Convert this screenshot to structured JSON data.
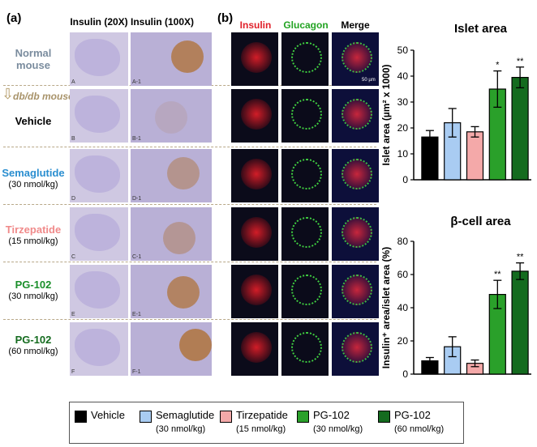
{
  "panel_a": {
    "label": "(a)",
    "col_headers": [
      "Insulin (20X)",
      "Insulin (100X)"
    ],
    "rows": [
      {
        "name": "Normal\nmouse",
        "dose": "",
        "color": "#7a8c9e"
      },
      {
        "name": "Vehicle",
        "dose": "",
        "color": "#000000"
      },
      {
        "name": "Semaglutide",
        "dose": "(30 nmol/kg)",
        "color": "#2a8ed0"
      },
      {
        "name": "Tirzepatide",
        "dose": "(15 nmol/kg)",
        "color": "#f08a8a"
      },
      {
        "name": "PG-102",
        "dose": "(30 nmol/kg)",
        "color": "#1a8f2a"
      },
      {
        "name": "PG-102",
        "dose": "(60 nmol/kg)",
        "color": "#146b1f"
      }
    ],
    "db_label": "db/db mouse",
    "image_codes_20x": [
      "A",
      "B",
      "D",
      "C",
      "E",
      "F"
    ],
    "image_codes_100x": [
      "A-1",
      "B-1",
      "D-1",
      "C-1",
      "E-1",
      "F-1"
    ]
  },
  "panel_b": {
    "label": "(b)",
    "col_headers": [
      {
        "text": "Insulin",
        "color": "#e0202a"
      },
      {
        "text": "Glucagon",
        "color": "#22a322"
      },
      {
        "text": "Merge",
        "color": "#000000"
      }
    ],
    "scale_label": "50 µm"
  },
  "chart_data": [
    {
      "type": "bar",
      "title": "Islet area",
      "ylabel": "Islet area (µm² x 1000)",
      "ylim": [
        0,
        50
      ],
      "yticks": [
        0,
        10,
        20,
        30,
        40,
        50
      ],
      "categories": [
        "Vehicle",
        "Semaglutide",
        "Tirzepatide",
        "PG-102 (30 nmol/kg)",
        "PG-102 (60 nmol/kg)"
      ],
      "values": [
        16.5,
        22,
        18.5,
        35,
        39.5
      ],
      "errors": [
        2.5,
        5.5,
        2,
        7,
        4
      ],
      "significance": [
        "",
        "",
        "",
        "*",
        "**"
      ],
      "colors": [
        "#000000",
        "#a9ccf2",
        "#f4a9a9",
        "#2aa02a",
        "#146b1f"
      ]
    },
    {
      "type": "bar",
      "title": "β-cell area",
      "ylabel": "Insulin⁺ area/islet area (%)",
      "ylim": [
        0,
        80
      ],
      "yticks": [
        0,
        20,
        40,
        60,
        80
      ],
      "categories": [
        "Vehicle",
        "Semaglutide",
        "Tirzepatide",
        "PG-102 (30 nmol/kg)",
        "PG-102 (60 nmol/kg)"
      ],
      "values": [
        8,
        16.5,
        6.5,
        48,
        62
      ],
      "errors": [
        2,
        6,
        2,
        8.5,
        5
      ],
      "significance": [
        "",
        "",
        "",
        "**",
        "**"
      ],
      "colors": [
        "#000000",
        "#a9ccf2",
        "#f4a9a9",
        "#2aa02a",
        "#146b1f"
      ]
    }
  ],
  "legend": [
    {
      "name": "Vehicle",
      "dose": "",
      "color": "#000000"
    },
    {
      "name": "Semaglutide",
      "dose": "(30 nmol/kg)",
      "color": "#a9ccf2"
    },
    {
      "name": "Tirzepatide",
      "dose": "(15 nmol/kg)",
      "color": "#f4a9a9"
    },
    {
      "name": "PG-102",
      "dose": "(30 nmol/kg)",
      "color": "#2aa02a"
    },
    {
      "name": "PG-102",
      "dose": "(60 nmol/kg)",
      "color": "#146b1f"
    }
  ]
}
